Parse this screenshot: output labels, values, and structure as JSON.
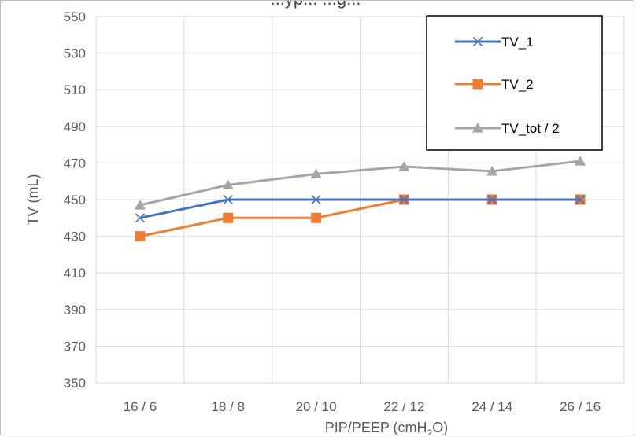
{
  "chart_data": {
    "type": "line",
    "title": "...yp... ...g...",
    "categories": [
      "16 / 6",
      "18 / 8",
      "20 / 10",
      "22 / 12",
      "24 / 14",
      "26 / 16"
    ],
    "series": [
      {
        "name": "TV_1",
        "values": [
          440,
          450,
          450,
          450,
          450,
          450
        ],
        "color": "#4472c4",
        "marker": "x"
      },
      {
        "name": "TV_2",
        "values": [
          430,
          440,
          440,
          450,
          450,
          450
        ],
        "color": "#ed7d31",
        "marker": "square"
      },
      {
        "name": "TV_tot / 2",
        "values": [
          447,
          458,
          464,
          468,
          465.5,
          471
        ],
        "color": "#a5a5a5",
        "marker": "triangle"
      }
    ],
    "ylabel": "TV (mL)",
    "xlabel": {
      "prefix": "PIP/PEEP (cmH",
      "subscript": "2",
      "suffix": "O)"
    },
    "ylim": [
      350,
      550
    ],
    "yticks": [
      350,
      370,
      390,
      410,
      430,
      450,
      470,
      490,
      510,
      530,
      550
    ],
    "grid": true,
    "legend_position": "top-right"
  }
}
